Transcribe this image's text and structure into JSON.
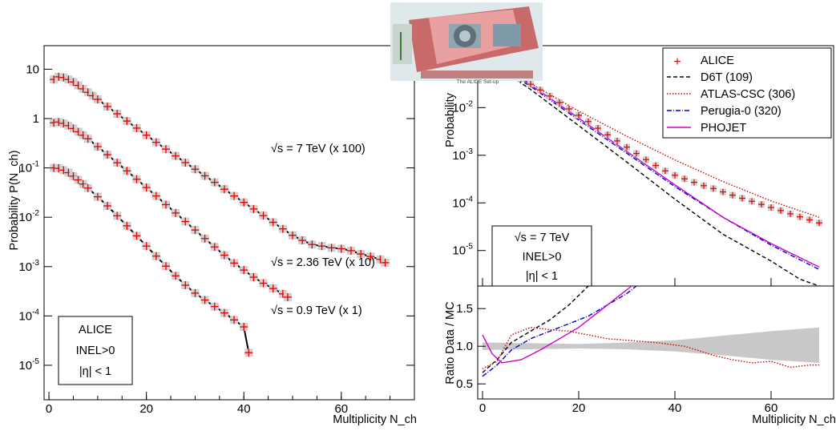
{
  "left_panel": {
    "xlabel": "Multiplicity N_ch",
    "ylabel": "Probability P(N_ch)",
    "info_box": [
      "ALICE",
      "INEL>0",
      "|η| < 1"
    ],
    "xticks": [
      "0",
      "20",
      "40",
      "60"
    ],
    "yticks": [
      "10^-5",
      "10^-4",
      "10^-3",
      "10^-2",
      "10^-1",
      "1",
      "10"
    ]
  },
  "right_panel": {
    "xlabel": "Multiplicity N_ch",
    "ylabel_top": "Probability",
    "ylabel_bottom": "Ratio Data / MC",
    "info_box": [
      "√s = 7 TeV",
      "INEL>0",
      "|η| < 1"
    ],
    "legend": [
      "ALICE",
      "D6T (109)",
      "ATLAS-CSC (306)",
      "Perugia-0 (320)",
      "PHOJET"
    ],
    "xticks": [
      "0",
      "20",
      "40",
      "60"
    ],
    "yticks_top": [
      "10^-5",
      "10^-4",
      "10^-3",
      "10^-2"
    ],
    "yticks_bottom": [
      "0.5",
      "1.0",
      "1.5"
    ]
  },
  "logo_caption": "The ALICE Set-up",
  "colors": {
    "data": "#e00000",
    "fit": "#000000",
    "d6t": "#000000",
    "atlas": "#cc0000",
    "perugia": "#0000cc",
    "phojet": "#cc00cc",
    "band": "#c8c8c8"
  },
  "chart_data": [
    {
      "type": "scatter",
      "title": "",
      "xlabel": "Multiplicity N_ch",
      "ylabel": "Probability P(N_ch)",
      "yscale": "log",
      "xlim": [
        -1,
        75
      ],
      "ylim": [
        2e-06,
        30
      ],
      "series": [
        {
          "name": "√s = 7 TeV (x 100)",
          "x": [
            1,
            2,
            3,
            4,
            5,
            6,
            7,
            8,
            9,
            10,
            12,
            14,
            16,
            18,
            20,
            22,
            24,
            26,
            28,
            30,
            32,
            34,
            36,
            38,
            40,
            42,
            44,
            46,
            48,
            50,
            52,
            54,
            56,
            58,
            60,
            62,
            64,
            66,
            68,
            69
          ],
          "y": [
            6.2,
            7.0,
            6.8,
            6.2,
            5.5,
            4.7,
            4.0,
            3.4,
            2.9,
            2.45,
            1.75,
            1.25,
            0.89,
            0.64,
            0.46,
            0.33,
            0.24,
            0.175,
            0.128,
            0.094,
            0.069,
            0.051,
            0.037,
            0.027,
            0.02,
            0.0147,
            0.0108,
            0.0079,
            0.0058,
            0.0043,
            0.0034,
            0.0028,
            0.0026,
            0.0024,
            0.0023,
            0.0021,
            0.0018,
            0.0016,
            0.0014,
            0.0012
          ]
        },
        {
          "name": "√s = 2.36 TeV (x 10)",
          "x": [
            1,
            2,
            3,
            4,
            5,
            6,
            7,
            8,
            10,
            12,
            14,
            16,
            18,
            20,
            22,
            24,
            26,
            28,
            30,
            32,
            34,
            36,
            38,
            40,
            42,
            44,
            46,
            48,
            49
          ],
          "y": [
            0.82,
            0.85,
            0.8,
            0.72,
            0.63,
            0.54,
            0.46,
            0.39,
            0.27,
            0.185,
            0.127,
            0.087,
            0.059,
            0.04,
            0.027,
            0.018,
            0.0122,
            0.0082,
            0.0055,
            0.0037,
            0.0025,
            0.0017,
            0.00118,
            0.00085,
            0.00061,
            0.00046,
            0.00036,
            0.00028,
            0.00024
          ]
        },
        {
          "name": "√s = 0.9 TeV (x 1)",
          "x": [
            1,
            2,
            3,
            4,
            5,
            6,
            7,
            8,
            10,
            12,
            14,
            16,
            18,
            20,
            22,
            24,
            26,
            28,
            30,
            32,
            34,
            36,
            38,
            40,
            41
          ],
          "y": [
            0.1,
            0.098,
            0.09,
            0.08,
            0.068,
            0.057,
            0.047,
            0.039,
            0.026,
            0.017,
            0.0107,
            0.0067,
            0.0042,
            0.0026,
            0.00163,
            0.00102,
            0.00065,
            0.00042,
            0.00029,
            0.00021,
            0.000155,
            0.000115,
            8.3e-05,
            6e-05,
            1.8e-05
          ]
        }
      ],
      "annotations": [
        "√s = 7 TeV (x 100)",
        "√s = 2.36 TeV (x 10)",
        "√s = 0.9 TeV (x 1)"
      ]
    },
    {
      "type": "line",
      "title": "",
      "xlabel": "Multiplicity N_ch",
      "ylabel": "Probability",
      "yscale": "log",
      "xlim": [
        -1,
        73
      ],
      "ylim": [
        1.8e-06,
        0.2
      ],
      "series": [
        {
          "name": "ALICE",
          "x": [
            4,
            6,
            8,
            10,
            12,
            14,
            16,
            18,
            20,
            22,
            24,
            26,
            28,
            30,
            32,
            34,
            36,
            38,
            40,
            42,
            44,
            46,
            48,
            50,
            52,
            54,
            56,
            58,
            60,
            62,
            64,
            66,
            68,
            70
          ],
          "y": [
            0.062,
            0.05,
            0.04,
            0.031,
            0.0235,
            0.0175,
            0.0128,
            0.0094,
            0.0069,
            0.0051,
            0.0037,
            0.0027,
            0.002,
            0.00148,
            0.00109,
            0.00081,
            0.00061,
            0.00047,
            0.00038,
            0.00032,
            0.00027,
            0.00023,
            0.0002,
            0.00017,
            0.000145,
            0.000125,
            0.000108,
            9.3e-05,
            8e-05,
            6.9e-05,
            5.9e-05,
            5.1e-05,
            4.4e-05,
            3.8e-05
          ]
        },
        {
          "name": "D6T (109)",
          "x": [
            4,
            10,
            20,
            30,
            40,
            50,
            60,
            66,
            70
          ],
          "y": [
            0.062,
            0.024,
            0.0042,
            0.00072,
            0.00012,
            2.2e-05,
            6e-06,
            2.5e-06,
            1.8e-06
          ]
        },
        {
          "name": "ATLAS-CSC (306)",
          "x": [
            4,
            10,
            20,
            30,
            40,
            50,
            60,
            70
          ],
          "y": [
            0.07,
            0.032,
            0.0085,
            0.0025,
            0.0008,
            0.00028,
            0.00011,
            5e-05
          ]
        },
        {
          "name": "Perugia-0 (320)",
          "x": [
            4,
            10,
            20,
            30,
            40,
            50,
            60,
            70
          ],
          "y": [
            0.065,
            0.028,
            0.0055,
            0.0011,
            0.00022,
            5e-05,
            1.3e-05,
            4e-06
          ]
        },
        {
          "name": "PHOJET",
          "x": [
            4,
            10,
            20,
            30,
            40,
            50,
            60,
            70
          ],
          "y": [
            0.075,
            0.03,
            0.006,
            0.0012,
            0.00024,
            5e-05,
            1.4e-05,
            4.5e-06
          ]
        }
      ]
    },
    {
      "type": "line",
      "title": "",
      "xlabel": "Multiplicity N_ch",
      "ylabel": "Ratio Data / MC",
      "xlim": [
        -1,
        73
      ],
      "ylim": [
        0.3,
        1.8
      ],
      "series": [
        {
          "name": "D6T (109)",
          "x": [
            0,
            3,
            6,
            10,
            14,
            18,
            22
          ],
          "y": [
            0.65,
            0.82,
            1.05,
            1.2,
            1.35,
            1.55,
            1.8
          ]
        },
        {
          "name": "ATLAS-CSC (306)",
          "x": [
            0,
            3,
            6,
            10,
            14,
            18,
            22,
            26,
            30,
            36,
            42,
            48,
            52,
            56,
            60,
            64,
            68,
            70
          ],
          "y": [
            0.7,
            0.8,
            1.15,
            1.25,
            1.22,
            1.2,
            1.15,
            1.1,
            1.08,
            1.05,
            1.0,
            0.88,
            0.82,
            0.78,
            0.8,
            0.72,
            0.75,
            0.75
          ]
        },
        {
          "name": "Perugia-0 (320)",
          "x": [
            0,
            3,
            6,
            10,
            14,
            18,
            22,
            26,
            30,
            32
          ],
          "y": [
            0.6,
            0.75,
            0.95,
            1.1,
            1.2,
            1.3,
            1.4,
            1.55,
            1.7,
            1.8
          ]
        },
        {
          "name": "PHOJET",
          "x": [
            0,
            2,
            4,
            8,
            12,
            16,
            20,
            24,
            28,
            31
          ],
          "y": [
            1.15,
            0.9,
            0.78,
            0.82,
            0.95,
            1.1,
            1.25,
            1.45,
            1.65,
            1.8
          ]
        }
      ],
      "band": {
        "x": [
          0,
          10,
          20,
          30,
          40,
          50,
          60,
          70
        ],
        "lo": [
          0.95,
          0.96,
          0.97,
          0.96,
          0.93,
          0.88,
          0.82,
          0.78
        ],
        "hi": [
          1.05,
          1.04,
          1.03,
          1.05,
          1.08,
          1.14,
          1.2,
          1.25
        ]
      }
    }
  ]
}
